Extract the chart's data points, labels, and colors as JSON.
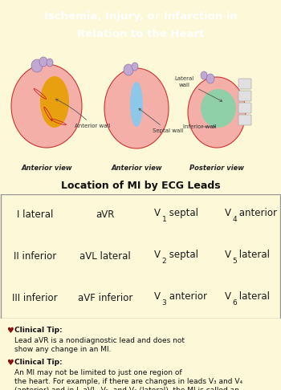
{
  "title_line1": "Ischemia, Injury, or Infarction in",
  "title_line2": "Relation to the Heart",
  "title_bg": "#2d7a1a",
  "title_color": "#ffffff",
  "subtitle": "Location of MI by ECG Leads",
  "bg_color": "#fdf8d8",
  "table_rows": [
    [
      {
        "text": "I lateral",
        "bg": "#f5c896",
        "lead": null
      },
      {
        "text": "aVR",
        "bg": "#ffffff",
        "lead": null
      },
      {
        "text": " septal",
        "bg": "#7ecfe8",
        "lead": "V",
        "sub": "1"
      },
      {
        "text": " anterior",
        "bg": "#f5a800",
        "lead": "V",
        "sub": "4"
      }
    ],
    [
      {
        "text": "II inferior",
        "bg": "#6dcba8",
        "lead": null
      },
      {
        "text": "aVL lateral",
        "bg": "#f5c896",
        "lead": null
      },
      {
        "text": " septal",
        "bg": "#7ecfe8",
        "lead": "V",
        "sub": "2"
      },
      {
        "text": " lateral",
        "bg": "#f5c896",
        "lead": "V",
        "sub": "5"
      }
    ],
    [
      {
        "text": "III inferior",
        "bg": "#6dcba8",
        "lead": null
      },
      {
        "text": "aVF inferior",
        "bg": "#6dcba8",
        "lead": null
      },
      {
        "text": " anterior",
        "bg": "#f5a800",
        "lead": "V",
        "sub": "3"
      },
      {
        "text": " lateral",
        "bg": "#f5c896",
        "lead": "V",
        "sub": "6"
      }
    ]
  ],
  "tip1_bold": "Clinical Tip:",
  "tip1_rest": " Lead aVR is a nondiagnostic lead and does not show any change in an MI.",
  "tip2_bold": "Clinical Tip:",
  "tip2_rest": " An MI may not be limited to just one region of the heart. For example, if there are changes in leads V₃ and V₄ (anterior) and in I, aVL, V₅, and V₆ (lateral), the MI is called an anterolateral infarction.",
  "heart1_main": "#f4b0a8",
  "heart1_highlight": "#e8a010",
  "heart2_main": "#f4b0a8",
  "heart2_highlight": "#8ec8e8",
  "heart3_main": "#f4b0a8",
  "heart3_highlight": "#90d0a8",
  "vessel_color": "#c0a8d0",
  "vessel_edge": "#9070b0",
  "heart_edge": "#cc3333",
  "label_color": "#333333",
  "arrow_color": "#555555"
}
